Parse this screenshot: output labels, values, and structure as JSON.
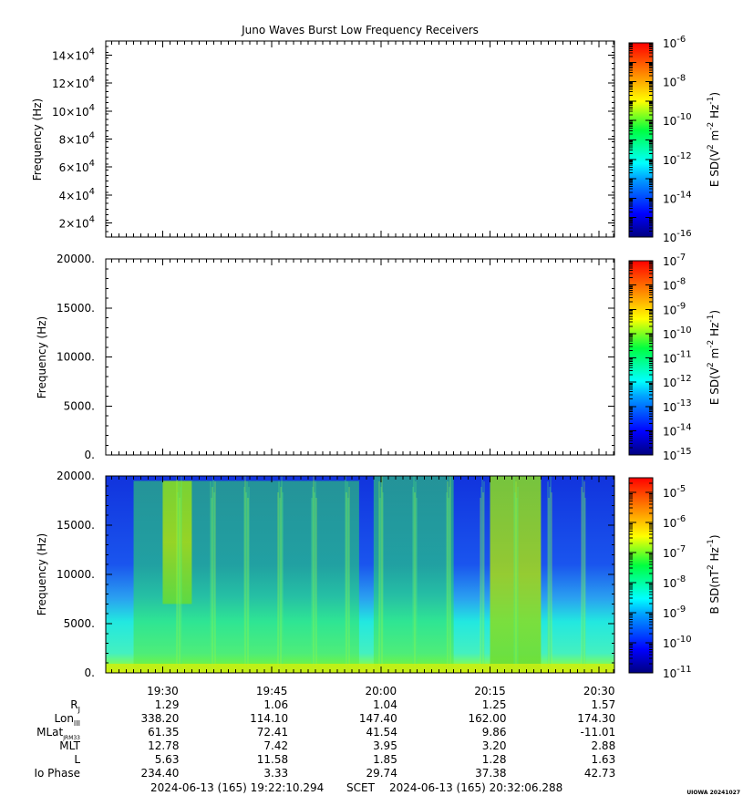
{
  "title": "Juno Waves Burst Low Frequency Receivers",
  "colors": {
    "axis": "#000000",
    "background": "#ffffff"
  },
  "time_axis": {
    "ticks": [
      "19:30",
      "19:45",
      "20:00",
      "20:15",
      "20:30"
    ],
    "range": [
      "2024-06-13T19:22:10.294",
      "2024-06-13T20:32:06.288"
    ]
  },
  "ephemeris": {
    "rows": [
      {
        "label": "R",
        "sub": "J",
        "values": [
          "1.29",
          "1.06",
          "1.04",
          "1.25",
          "1.57"
        ]
      },
      {
        "label": "Lon",
        "sub": "III",
        "values": [
          "338.20",
          "114.10",
          "147.40",
          "162.00",
          "174.30"
        ]
      },
      {
        "label": "MLat",
        "sub": "JRM33",
        "values": [
          "61.35",
          "72.41",
          "41.54",
          "9.86",
          "-11.01"
        ]
      },
      {
        "label": "MLT",
        "sub": "",
        "values": [
          "12.78",
          "7.42",
          "3.95",
          "3.20",
          "2.88"
        ]
      },
      {
        "label": "L",
        "sub": "",
        "values": [
          "5.63",
          "11.58",
          "1.85",
          "1.28",
          "1.63"
        ]
      },
      {
        "label": "Io Phase",
        "sub": "",
        "values": [
          "234.40",
          "3.33",
          "29.74",
          "37.38",
          "42.73"
        ]
      }
    ]
  },
  "footer": {
    "start": "2024-06-13 (165) 19:22:10.294",
    "scet": "SCET",
    "end": "2024-06-13 (165) 20:32:06.288",
    "version": "UIOWA 20241027"
  },
  "chart_data": [
    {
      "type": "heatmap",
      "panel": "E high band",
      "ylabel": "Frequency (Hz)",
      "yticks": [
        {
          "mant": "2",
          "exp": "4"
        },
        {
          "mant": "4",
          "exp": "4"
        },
        {
          "mant": "6",
          "exp": "4"
        },
        {
          "mant": "8",
          "exp": "4"
        },
        {
          "mant": "10",
          "exp": "4"
        },
        {
          "mant": "12",
          "exp": "4"
        },
        {
          "mant": "14",
          "exp": "4"
        }
      ],
      "ytick_values": [
        20000,
        40000,
        60000,
        80000,
        100000,
        120000,
        140000
      ],
      "ylim": [
        10000,
        150000
      ],
      "colorbar": {
        "label": "E SD(V",
        "label_parts": [
          "E SD(V",
          "2",
          " m",
          "-2",
          " Hz",
          "-1",
          ")"
        ],
        "scale": "log",
        "tick_exponents": [
          "-6",
          "-8",
          "-10",
          "-12",
          "-14",
          "-16"
        ],
        "range": [
          1e-16,
          1e-06
        ]
      },
      "data": "empty"
    },
    {
      "type": "heatmap",
      "panel": "E low band",
      "ylabel": "Frequency (Hz)",
      "ytick_labels": [
        "0.",
        "5000.",
        "10000.",
        "15000.",
        "20000."
      ],
      "ytick_values": [
        0,
        5000,
        10000,
        15000,
        20000
      ],
      "ylim": [
        0,
        20000
      ],
      "colorbar": {
        "label_parts": [
          "E SD(V",
          "2",
          " m",
          "-2",
          " Hz",
          "-1",
          ")"
        ],
        "scale": "log",
        "tick_exponents": [
          "-7",
          "-8",
          "-9",
          "-10",
          "-11",
          "-12",
          "-13",
          "-14",
          "-15"
        ],
        "range": [
          1e-15,
          1e-07
        ]
      },
      "data": "empty"
    },
    {
      "type": "heatmap",
      "panel": "B low band",
      "ylabel": "Frequency (Hz)",
      "ytick_labels": [
        "0.",
        "5000.",
        "10000.",
        "15000.",
        "20000."
      ],
      "ytick_values": [
        0,
        5000,
        10000,
        15000,
        20000
      ],
      "ylim": [
        0,
        20000
      ],
      "colorbar": {
        "label_parts": [
          "B SD(nT",
          "2",
          " Hz",
          "-1",
          ")"
        ],
        "scale": "log",
        "tick_exponents": [
          "-5",
          "-6",
          "-7",
          "-8",
          "-9",
          "-10",
          "-11"
        ],
        "range": [
          1e-11,
          3e-05
        ]
      },
      "background_level": "blue (~1e-10)",
      "features": [
        {
          "desc": "broadband emission",
          "t_start": "19:26",
          "t_end": "19:57",
          "fmin": 0,
          "fmax": 19500
        },
        {
          "desc": "intense emission",
          "t_start": "19:30",
          "t_end": "19:34",
          "fmin": 7000,
          "fmax": 19500
        },
        {
          "desc": "broadband emission",
          "t_start": "19:59",
          "t_end": "20:10",
          "fmin": 0,
          "fmax": 20000
        },
        {
          "desc": "intense emission",
          "t_start": "20:15",
          "t_end": "20:22",
          "fmin": 0,
          "fmax": 20000
        }
      ]
    }
  ]
}
